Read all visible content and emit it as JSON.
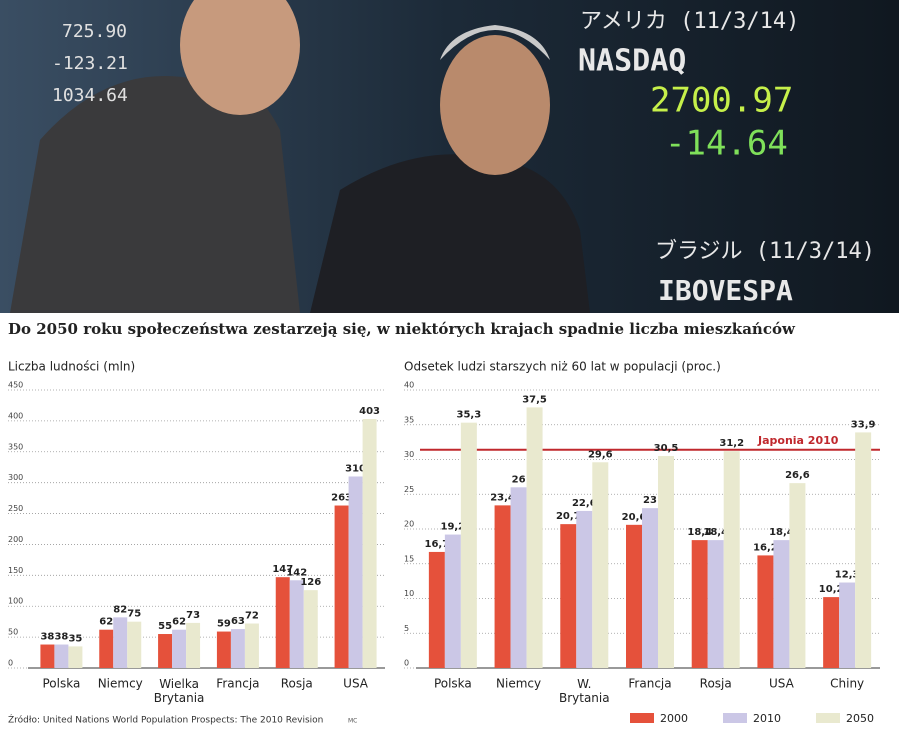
{
  "photo": {
    "texts": [
      "アメリカ (11/3/14)",
      "NASDAQ",
      "2700.97",
      "-14.64",
      "ブラジル (11/3/14)",
      "IBOVESPA",
      "725.90",
      "-123.21",
      "1034.64"
    ]
  },
  "title": "Do 2050 roku społeczeństwa zestarzeją się, w niektórych krajach spadnie liczba mieszkańców",
  "source": "Źródło: United Nations World Population Prospects: The 2010 Revision",
  "credit": "MC",
  "chart_data": [
    {
      "type": "bar",
      "title": "Liczba ludności (mln)",
      "categories": [
        "Polska",
        "Niemcy",
        "Wielka Brytania",
        "Francja",
        "Rosja",
        "USA"
      ],
      "series": [
        {
          "color": "#e5513b",
          "values": [
            38,
            62,
            55,
            59,
            147,
            263
          ]
        },
        {
          "color": "#cbc7e6",
          "values": [
            38,
            82,
            62,
            63,
            142,
            310
          ]
        },
        {
          "color": "#e9e9cf",
          "values": [
            35,
            75,
            73,
            72,
            126,
            403
          ]
        }
      ],
      "ylim": [
        0,
        450
      ],
      "yticks": [
        0,
        50,
        100,
        150,
        200,
        250,
        300,
        350,
        400,
        450
      ],
      "grid": true
    },
    {
      "type": "bar",
      "title": "Odsetek ludzi starszych niż 60 lat w populacji (proc.)",
      "categories": [
        "Polska",
        "Niemcy",
        "W. Brytania",
        "Francja",
        "Rosja",
        "USA",
        "Chiny"
      ],
      "series": [
        {
          "name": "2000",
          "color": "#e5513b",
          "values": [
            16.7,
            23.4,
            20.7,
            20.6,
            18.4,
            16.2,
            10.2
          ],
          "value_labels": [
            "16,7",
            "23,4",
            "20,7",
            "20,6",
            "18,4",
            "16,2",
            "10,2"
          ]
        },
        {
          "name": "2010",
          "color": "#cbc7e6",
          "values": [
            19.2,
            26,
            22.6,
            23,
            18.4,
            18.4,
            12.3
          ],
          "value_labels": [
            "19,2",
            "26",
            "22,6",
            "23",
            "18,4",
            "18,4",
            "12,3"
          ]
        },
        {
          "name": "2050",
          "color": "#e9e9cf",
          "values": [
            35.3,
            37.5,
            29.6,
            30.5,
            31.2,
            26.6,
            33.9
          ],
          "value_labels": [
            "35,3",
            "37,5",
            "29,6",
            "30,5",
            "31,2",
            "26,6",
            "33,9"
          ]
        }
      ],
      "reference": {
        "label": "Japonia 2010",
        "value": 31.4,
        "color": "#c0282d"
      },
      "ylim": [
        0,
        40
      ],
      "yticks": [
        0,
        5,
        10,
        15,
        20,
        25,
        30,
        35,
        40
      ],
      "grid": true
    }
  ]
}
